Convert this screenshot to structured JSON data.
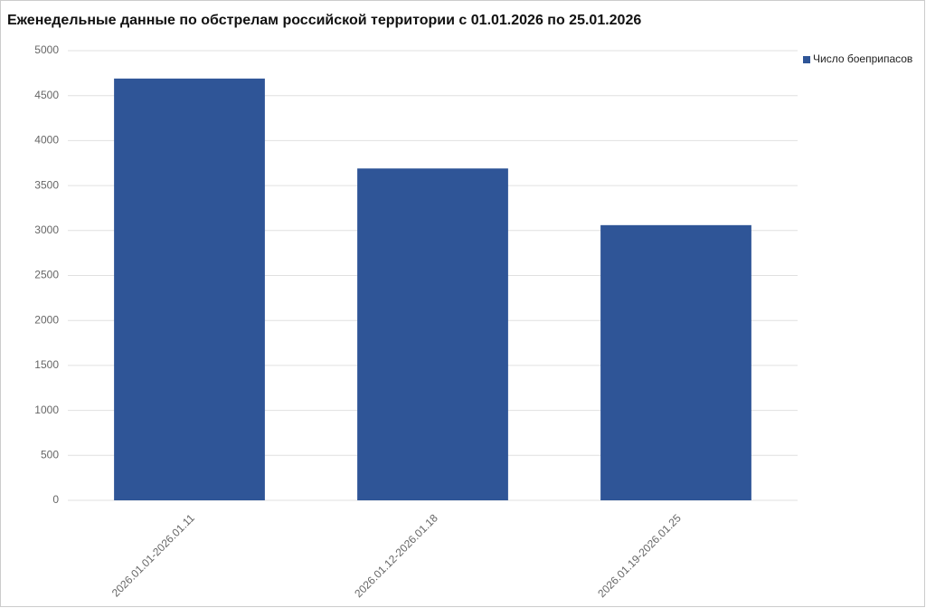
{
  "chart_data": {
    "type": "bar",
    "title": "Еженедельные данные по обстрелам российской территории с 01.01.2026 по 25.01.2026",
    "categories": [
      "2026.01.01-2026.01.11",
      "2026.01.12-2026.01.18",
      "2026.01.19-2026.01.25"
    ],
    "series": [
      {
        "name": "Число боеприпасов",
        "color": "#2f5597",
        "values": [
          4690,
          3690,
          3060
        ]
      }
    ],
    "ylim": [
      0,
      5000
    ],
    "yticks": [
      0,
      500,
      1000,
      1500,
      2000,
      2500,
      3000,
      3500,
      4000,
      4500,
      5000
    ],
    "grid": true,
    "legend": "top-right"
  }
}
